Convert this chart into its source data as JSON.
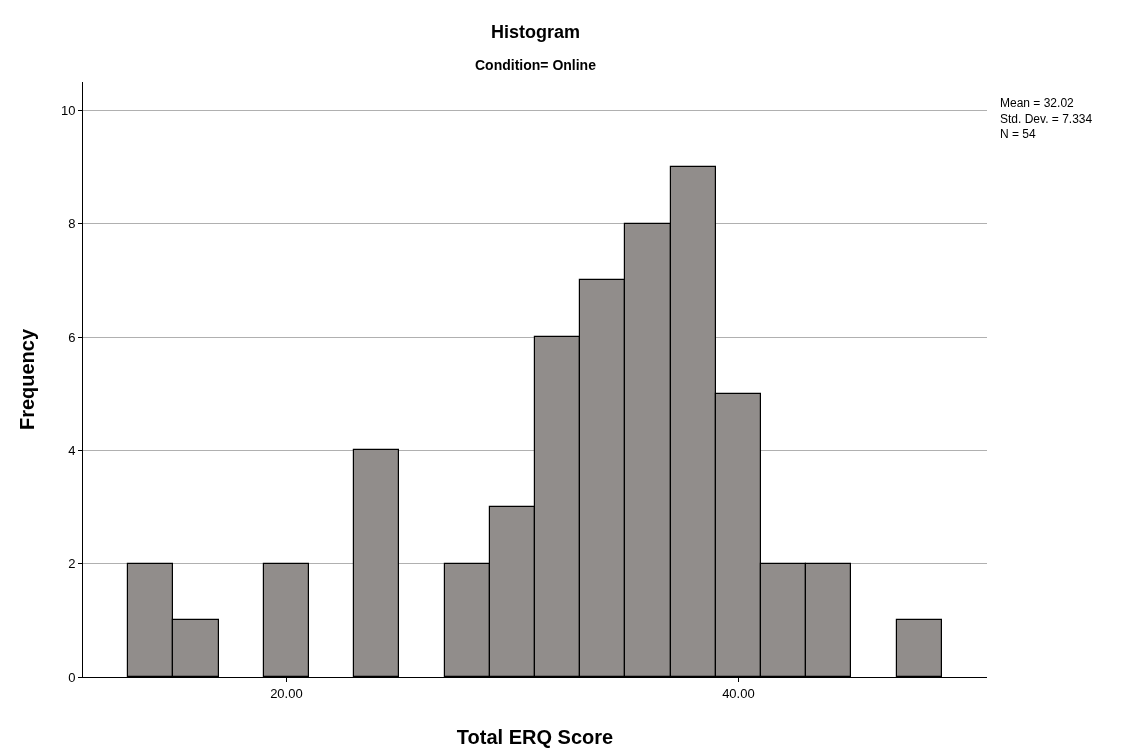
{
  "chart_data": {
    "type": "histogram",
    "title": "Histogram",
    "subtitle": "Condition= Online",
    "xlabel": "Total ERQ Score",
    "ylabel": "Frequency",
    "bins": [
      13,
      15,
      17,
      19,
      21,
      23,
      25,
      27,
      29,
      31,
      33,
      35,
      37,
      39,
      41,
      43,
      45,
      47,
      49
    ],
    "values": [
      2,
      1,
      0,
      2,
      0,
      4,
      0,
      2,
      3,
      6,
      7,
      8,
      9,
      5,
      2,
      2,
      0,
      1
    ],
    "color": "#918d8b",
    "xlim": [
      11,
      51
    ],
    "xticks": [
      {
        "value": 20,
        "label": "20.00"
      },
      {
        "value": 40,
        "label": "40.00"
      }
    ],
    "ylim": [
      0,
      10.5
    ],
    "yticks": [
      0,
      2,
      4,
      6,
      8,
      10
    ],
    "grid": "y",
    "annotations": [
      "Mean = 32.02\nStd. Dev. = 7.334\nN = 54"
    ]
  }
}
